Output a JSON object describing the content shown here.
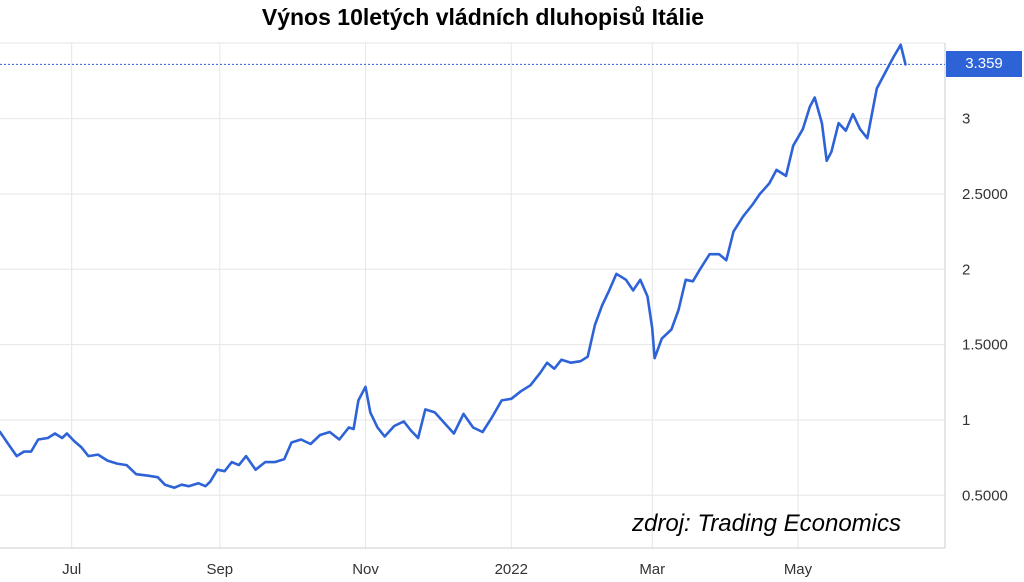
{
  "chart_data": {
    "type": "line",
    "title": "Výnos 10letých vládních dluhopisů Itálie",
    "source": "zdroj: Trading Economics",
    "last_value_label": "3.359",
    "line_color": "#2e63d8",
    "grid": true,
    "ylim": [
      0.15,
      3.5
    ],
    "y_ticks": [
      {
        "value": 3,
        "label": "3"
      },
      {
        "value": 2.5,
        "label": "2.5000"
      },
      {
        "value": 2,
        "label": "2"
      },
      {
        "value": 1.5,
        "label": "1.5000"
      },
      {
        "value": 1,
        "label": "1"
      },
      {
        "value": 0.5,
        "label": "0.5000"
      }
    ],
    "x_range": [
      "2021-06-01",
      "2022-06-24"
    ],
    "x_ticks": [
      {
        "date": "2021-07-01",
        "label": "Jul"
      },
      {
        "date": "2021-09-01",
        "label": "Sep"
      },
      {
        "date": "2021-11-01",
        "label": "Nov"
      },
      {
        "date": "2022-01-01",
        "label": "2022"
      },
      {
        "date": "2022-03-01",
        "label": "Mar"
      },
      {
        "date": "2022-05-01",
        "label": "May"
      }
    ],
    "series": [
      {
        "points": [
          [
            "2021-06-01",
            0.92
          ],
          [
            "2021-06-04",
            0.85
          ],
          [
            "2021-06-08",
            0.76
          ],
          [
            "2021-06-11",
            0.79
          ],
          [
            "2021-06-14",
            0.79
          ],
          [
            "2021-06-17",
            0.87
          ],
          [
            "2021-06-21",
            0.88
          ],
          [
            "2021-06-24",
            0.91
          ],
          [
            "2021-06-27",
            0.88
          ],
          [
            "2021-06-29",
            0.91
          ],
          [
            "2021-07-02",
            0.86
          ],
          [
            "2021-07-05",
            0.82
          ],
          [
            "2021-07-08",
            0.76
          ],
          [
            "2021-07-12",
            0.77
          ],
          [
            "2021-07-16",
            0.73
          ],
          [
            "2021-07-20",
            0.71
          ],
          [
            "2021-07-24",
            0.7
          ],
          [
            "2021-07-28",
            0.64
          ],
          [
            "2021-08-02",
            0.63
          ],
          [
            "2021-08-06",
            0.62
          ],
          [
            "2021-08-09",
            0.57
          ],
          [
            "2021-08-13",
            0.55
          ],
          [
            "2021-08-16",
            0.57
          ],
          [
            "2021-08-19",
            0.56
          ],
          [
            "2021-08-23",
            0.58
          ],
          [
            "2021-08-26",
            0.56
          ],
          [
            "2021-08-28",
            0.59
          ],
          [
            "2021-08-31",
            0.67
          ],
          [
            "2021-09-03",
            0.66
          ],
          [
            "2021-09-06",
            0.72
          ],
          [
            "2021-09-09",
            0.7
          ],
          [
            "2021-09-12",
            0.76
          ],
          [
            "2021-09-16",
            0.67
          ],
          [
            "2021-09-20",
            0.72
          ],
          [
            "2021-09-24",
            0.72
          ],
          [
            "2021-09-28",
            0.74
          ],
          [
            "2021-10-01",
            0.85
          ],
          [
            "2021-10-05",
            0.87
          ],
          [
            "2021-10-09",
            0.84
          ],
          [
            "2021-10-13",
            0.9
          ],
          [
            "2021-10-17",
            0.92
          ],
          [
            "2021-10-21",
            0.87
          ],
          [
            "2021-10-25",
            0.95
          ],
          [
            "2021-10-27",
            0.94
          ],
          [
            "2021-10-29",
            1.13
          ],
          [
            "2021-11-01",
            1.22
          ],
          [
            "2021-11-03",
            1.05
          ],
          [
            "2021-11-06",
            0.95
          ],
          [
            "2021-11-09",
            0.89
          ],
          [
            "2021-11-13",
            0.96
          ],
          [
            "2021-11-17",
            0.99
          ],
          [
            "2021-11-20",
            0.93
          ],
          [
            "2021-11-23",
            0.88
          ],
          [
            "2021-11-26",
            1.07
          ],
          [
            "2021-11-30",
            1.05
          ],
          [
            "2021-12-04",
            0.98
          ],
          [
            "2021-12-08",
            0.91
          ],
          [
            "2021-12-12",
            1.04
          ],
          [
            "2021-12-16",
            0.95
          ],
          [
            "2021-12-20",
            0.92
          ],
          [
            "2021-12-24",
            1.02
          ],
          [
            "2021-12-28",
            1.13
          ],
          [
            "2022-01-01",
            1.14
          ],
          [
            "2022-01-05",
            1.19
          ],
          [
            "2022-01-09",
            1.23
          ],
          [
            "2022-01-13",
            1.31
          ],
          [
            "2022-01-16",
            1.38
          ],
          [
            "2022-01-19",
            1.34
          ],
          [
            "2022-01-22",
            1.4
          ],
          [
            "2022-01-26",
            1.38
          ],
          [
            "2022-01-30",
            1.39
          ],
          [
            "2022-02-02",
            1.42
          ],
          [
            "2022-02-05",
            1.63
          ],
          [
            "2022-02-08",
            1.76
          ],
          [
            "2022-02-11",
            1.86
          ],
          [
            "2022-02-14",
            1.97
          ],
          [
            "2022-02-18",
            1.93
          ],
          [
            "2022-02-21",
            1.86
          ],
          [
            "2022-02-24",
            1.93
          ],
          [
            "2022-02-27",
            1.82
          ],
          [
            "2022-03-01",
            1.61
          ],
          [
            "2022-03-02",
            1.41
          ],
          [
            "2022-03-05",
            1.54
          ],
          [
            "2022-03-09",
            1.6
          ],
          [
            "2022-03-12",
            1.73
          ],
          [
            "2022-03-15",
            1.93
          ],
          [
            "2022-03-18",
            1.92
          ],
          [
            "2022-03-21",
            2.0
          ],
          [
            "2022-03-25",
            2.1
          ],
          [
            "2022-03-29",
            2.1
          ],
          [
            "2022-04-01",
            2.06
          ],
          [
            "2022-04-04",
            2.25
          ],
          [
            "2022-04-08",
            2.35
          ],
          [
            "2022-04-12",
            2.43
          ],
          [
            "2022-04-15",
            2.5
          ],
          [
            "2022-04-19",
            2.57
          ],
          [
            "2022-04-22",
            2.66
          ],
          [
            "2022-04-26",
            2.62
          ],
          [
            "2022-04-29",
            2.82
          ],
          [
            "2022-05-03",
            2.93
          ],
          [
            "2022-05-06",
            3.08
          ],
          [
            "2022-05-08",
            3.14
          ],
          [
            "2022-05-11",
            2.97
          ],
          [
            "2022-05-13",
            2.72
          ],
          [
            "2022-05-15",
            2.78
          ],
          [
            "2022-05-18",
            2.97
          ],
          [
            "2022-05-21",
            2.92
          ],
          [
            "2022-05-24",
            3.03
          ],
          [
            "2022-05-27",
            2.93
          ],
          [
            "2022-05-30",
            2.87
          ],
          [
            "2022-06-03",
            3.2
          ],
          [
            "2022-06-06",
            3.29
          ],
          [
            "2022-06-10",
            3.41
          ],
          [
            "2022-06-13",
            3.49
          ],
          [
            "2022-06-15",
            3.36
          ]
        ]
      }
    ]
  }
}
